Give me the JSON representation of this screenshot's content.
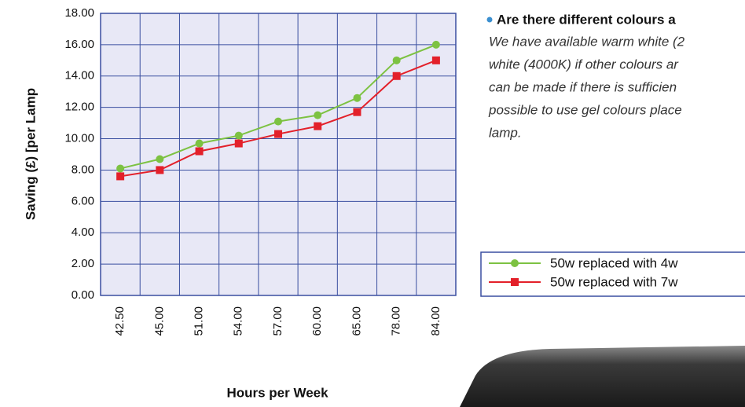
{
  "chart_data": {
    "type": "line",
    "x_label": "Hours per Week",
    "y_label": "Saving (£) [per Lamp",
    "categories": [
      "42.50",
      "45.00",
      "51.00",
      "54.00",
      "57.00",
      "60.00",
      "65.00",
      "78.00",
      "84.00"
    ],
    "series": [
      {
        "name": "50w replaced with 4w",
        "color": "#7dc242",
        "marker": "circle",
        "values": [
          8.1,
          8.7,
          9.7,
          10.2,
          11.1,
          11.5,
          12.6,
          15.0,
          16.0
        ]
      },
      {
        "name": "50w replaced with 7w",
        "color": "#e3202a",
        "marker": "square",
        "values": [
          7.6,
          8.0,
          9.2,
          9.7,
          10.3,
          10.8,
          11.7,
          14.0,
          15.0
        ]
      }
    ],
    "ylim": [
      0,
      18
    ],
    "yticks": [
      {
        "value": 0,
        "label": "0.00"
      },
      {
        "value": 2,
        "label": "2.00"
      },
      {
        "value": 4,
        "label": "4.00"
      },
      {
        "value": 6,
        "label": "6.00"
      },
      {
        "value": 8,
        "label": "8.00"
      },
      {
        "value": 10,
        "label": "10.00"
      },
      {
        "value": 12,
        "label": "12.00"
      },
      {
        "value": 14,
        "label": "14.00"
      },
      {
        "value": 16,
        "label": "16.00"
      },
      {
        "value": 18,
        "label": "18.00"
      }
    ],
    "grid": true,
    "legend": "right"
  },
  "document": {
    "heading": "Are there different colours a",
    "lines": [
      "We have available warm white (2",
      "white (4000K) if other colours ar",
      "can be made if there is sufficien",
      "possible to use gel colours place",
      "lamp."
    ]
  }
}
